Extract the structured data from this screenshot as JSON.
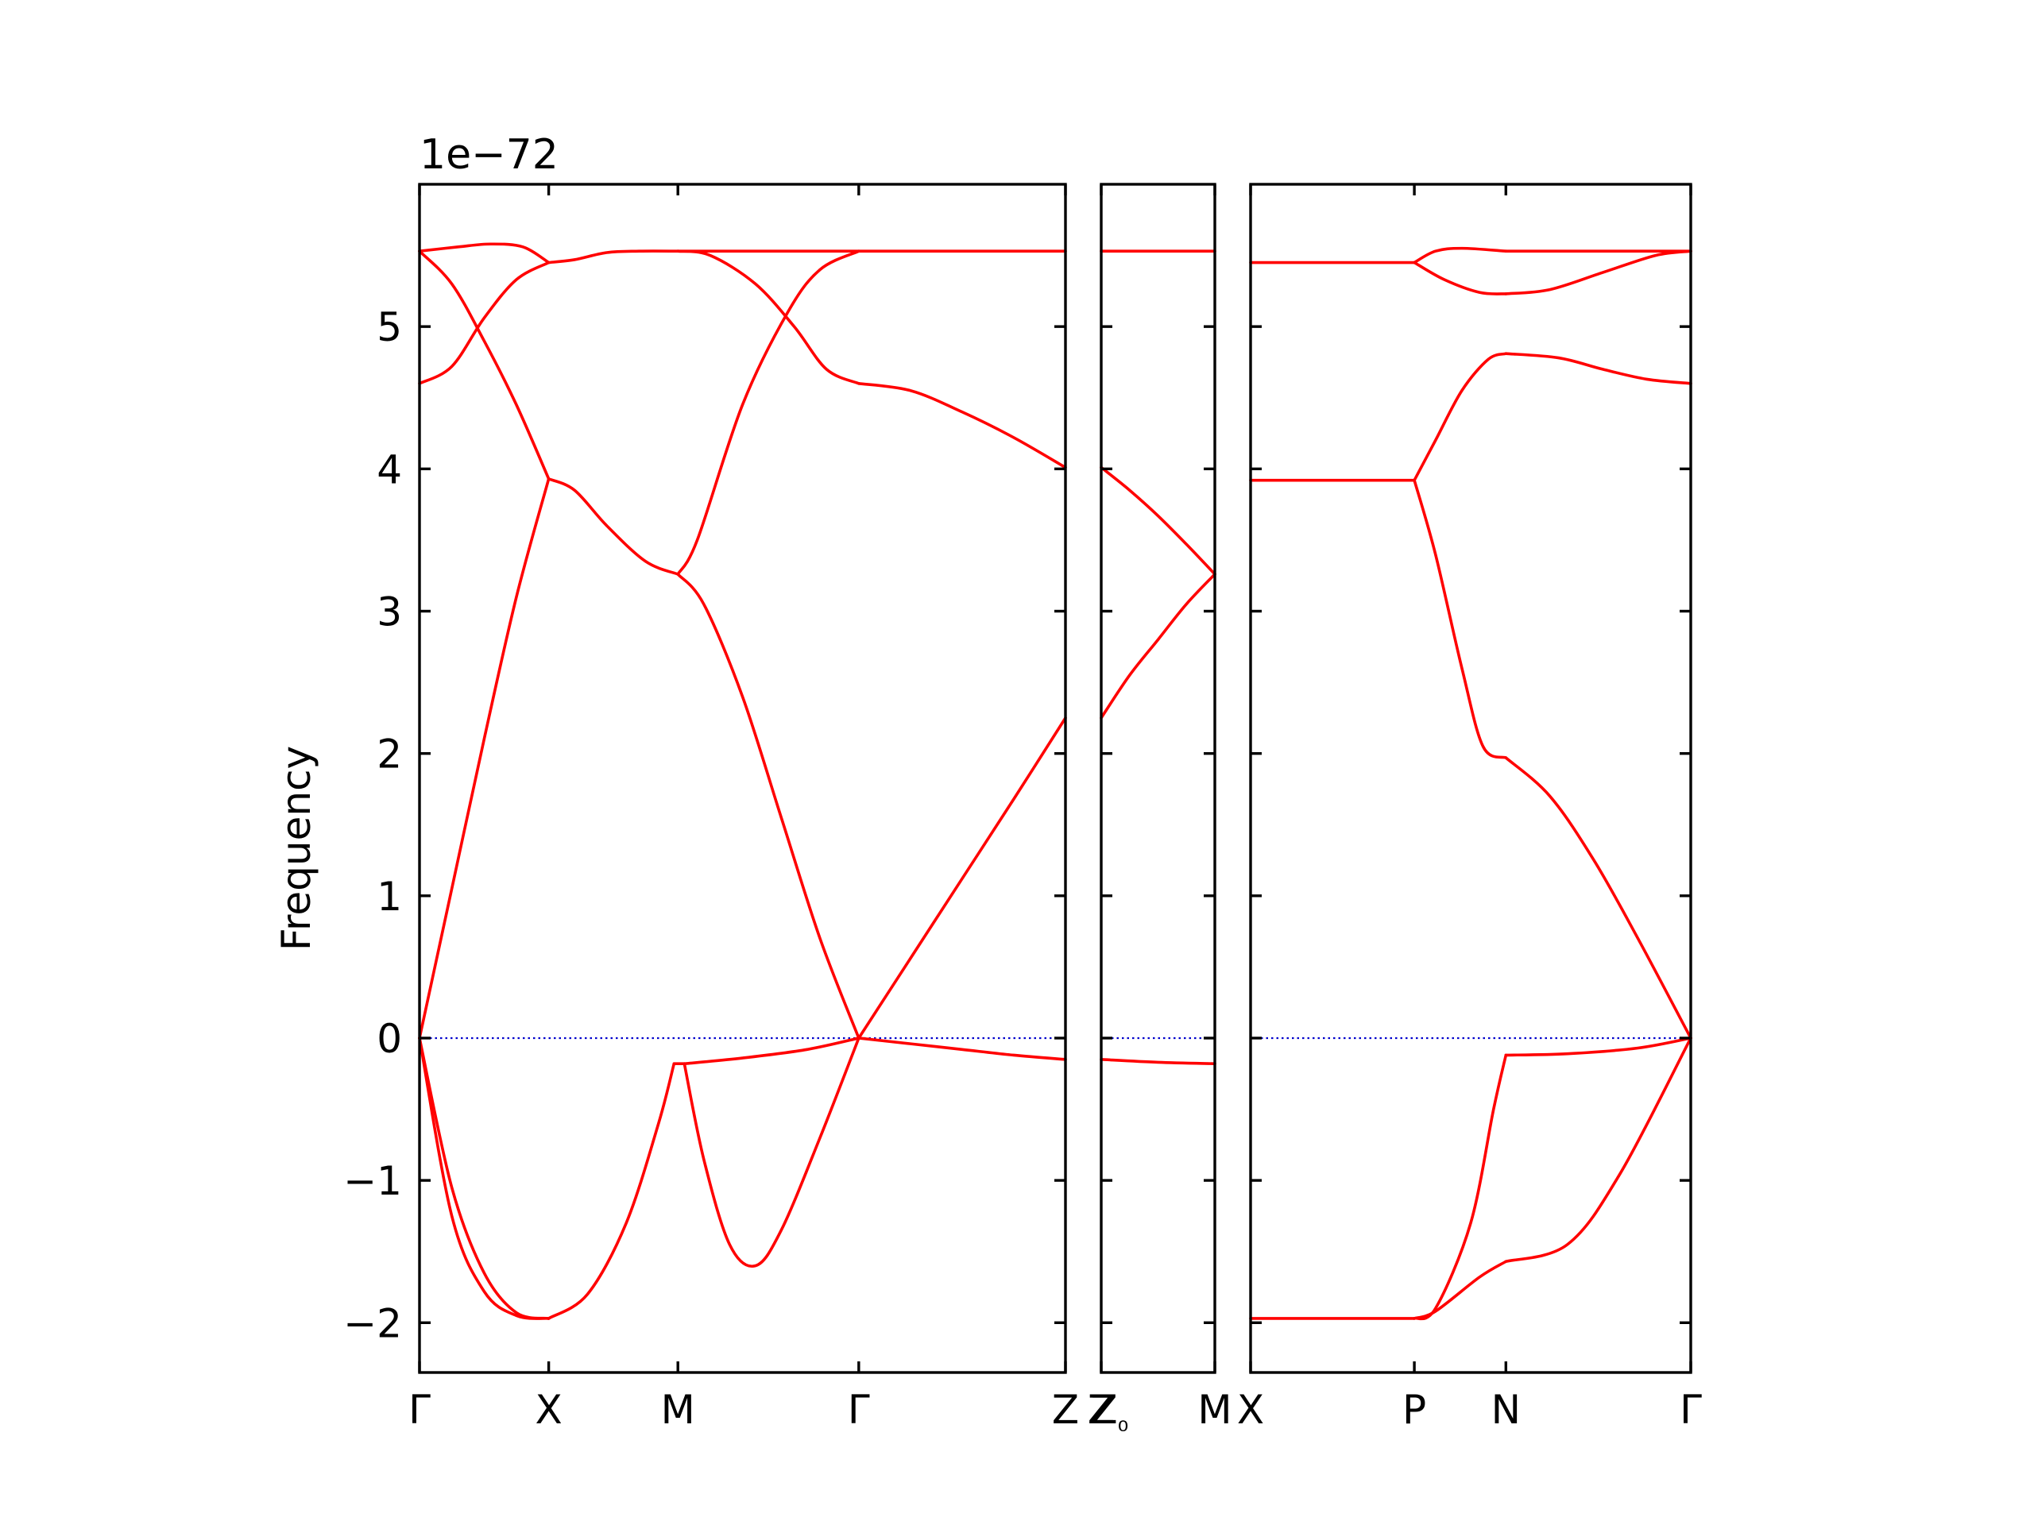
{
  "chart_data": {
    "type": "line",
    "title": "",
    "ylabel": "Frequency",
    "offset_label": "1e−72",
    "ylim": [
      -2.35,
      6.0
    ],
    "yticks": [
      -2,
      -1,
      0,
      1,
      2,
      3,
      4,
      5
    ],
    "ytick_labels": [
      "−2",
      "−1",
      "0",
      "1",
      "2",
      "3",
      "4",
      "5"
    ],
    "zero_line": {
      "value": 0,
      "style": "dotted",
      "color": "#0000cc"
    },
    "band_color": "#ff0000",
    "panels": [
      {
        "name": "panel-1",
        "xlim": [
          0,
          5
        ],
        "ticks": [
          {
            "x": 0,
            "label": "Γ"
          },
          {
            "x": 1,
            "label": "X"
          },
          {
            "x": 2,
            "label": "M"
          },
          {
            "x": 3.4,
            "label": "Γ"
          },
          {
            "x": 5,
            "label": "Z"
          }
        ],
        "series": [
          {
            "x": [
              0,
              0.25,
              0.5,
              0.75,
              1
            ],
            "y": [
              0,
              1.05,
              2.1,
              3.1,
              3.93
            ]
          },
          {
            "x": [
              0,
              0.25,
              0.5,
              0.75,
              1
            ],
            "y": [
              5.53,
              5.3,
              4.9,
              4.45,
              3.93
            ]
          },
          {
            "x": [
              0,
              0.25,
              0.5,
              0.75,
              1
            ],
            "y": [
              4.6,
              4.72,
              5.06,
              5.33,
              5.45
            ]
          },
          {
            "x": [
              0,
              0.3,
              0.55,
              0.8,
              1
            ],
            "y": [
              5.53,
              5.56,
              5.58,
              5.56,
              5.45
            ]
          },
          {
            "x": [
              1,
              1.2,
              1.45,
              1.7,
              2
            ],
            "y": [
              5.45,
              5.47,
              5.52,
              5.53,
              5.53
            ]
          },
          {
            "x": [
              1,
              1.2,
              1.45,
              1.75,
              2
            ],
            "y": [
              3.93,
              3.85,
              3.6,
              3.35,
              3.26
            ]
          },
          {
            "x": [
              2,
              2.2,
              2.5,
              2.8,
              3.1,
              3.4
            ],
            "y": [
              3.26,
              3.05,
              2.4,
              1.55,
              0.7,
              0
            ]
          },
          {
            "x": [
              2,
              2.15,
              2.5,
              2.85,
              3.1,
              3.4
            ],
            "y": [
              3.26,
              3.5,
              4.45,
              5.1,
              5.4,
              5.53
            ]
          },
          {
            "x": [
              2,
              2.25,
              2.6,
              2.9,
              3.15,
              3.4
            ],
            "y": [
              5.53,
              5.5,
              5.3,
              5.0,
              4.7,
              4.6
            ]
          },
          {
            "x": [
              2,
              2.5,
              3,
              3.4
            ],
            "y": [
              5.53,
              5.53,
              5.53,
              5.53
            ]
          },
          {
            "x": [
              3.4,
              3.8,
              4.2,
              4.6,
              5
            ],
            "y": [
              4.6,
              4.55,
              4.4,
              4.22,
              4.01
            ]
          },
          {
            "x": [
              3.4,
              3.8,
              4.2,
              4.6,
              5
            ],
            "y": [
              5.53,
              5.53,
              5.53,
              5.53,
              5.53
            ]
          },
          {
            "x": [
              3.4,
              3.8,
              4.2,
              4.6,
              5
            ],
            "y": [
              0,
              0.56,
              1.12,
              1.68,
              2.25
            ]
          },
          {
            "x": [
              3.4,
              3.8,
              4.2,
              4.6,
              5
            ],
            "y": [
              0,
              -0.04,
              -0.08,
              -0.12,
              -0.15
            ]
          },
          {
            "x": [
              0,
              0.25,
              0.5,
              0.75,
              1
            ],
            "y": [
              0,
              -1.05,
              -1.65,
              -1.93,
              -1.97
            ]
          },
          {
            "x": [
              0,
              0.25,
              0.5,
              0.75,
              1
            ],
            "y": [
              0,
              -1.25,
              -1.78,
              -1.95,
              -1.97
            ]
          },
          {
            "x": [
              1,
              1.3,
              1.6,
              1.85,
              1.97
            ],
            "y": [
              -1.97,
              -1.8,
              -1.3,
              -0.6,
              -0.18
            ]
          },
          {
            "x": [
              2.05,
              2.2,
              2.4,
              2.6,
              2.8,
              3.1,
              3.4
            ],
            "y": [
              -0.18,
              -0.85,
              -1.45,
              -1.6,
              -1.35,
              -0.7,
              0
            ]
          },
          {
            "x": [
              1.97,
              2.05
            ],
            "y": [
              -0.18,
              -0.18
            ]
          },
          {
            "x": [
              2.05,
              2.5,
              3,
              3.4
            ],
            "y": [
              -0.18,
              -0.14,
              -0.08,
              0
            ]
          }
        ]
      },
      {
        "name": "panel-2",
        "xlim": [
          0,
          1
        ],
        "ticks": [
          {
            "x": 0,
            "label": "Z"
          },
          {
            "x": 1,
            "label": "M"
          }
        ],
        "tick_label_override": [
          {
            "x": 0.1,
            "label": "Z₀"
          }
        ],
        "series": [
          {
            "x": [
              0,
              0.25,
              0.5,
              0.75,
              1
            ],
            "y": [
              4.01,
              3.85,
              3.67,
              3.47,
              3.26
            ]
          },
          {
            "x": [
              0,
              0.25,
              0.5,
              0.75,
              1
            ],
            "y": [
              2.25,
              2.55,
              2.8,
              3.05,
              3.26
            ]
          },
          {
            "x": [
              0,
              1
            ],
            "y": [
              5.53,
              5.53
            ]
          },
          {
            "x": [
              0,
              0.5,
              1
            ],
            "y": [
              -0.15,
              -0.17,
              -0.18
            ]
          }
        ]
      },
      {
        "name": "panel-3",
        "xlim": [
          0,
          2.5
        ],
        "ticks": [
          {
            "x": 0,
            "label": "X"
          },
          {
            "x": 0.93,
            "label": "P"
          },
          {
            "x": 1.45,
            "label": "N"
          },
          {
            "x": 2.5,
            "label": "Γ"
          }
        ],
        "series": [
          {
            "x": [
              0,
              0.93
            ],
            "y": [
              5.45,
              5.45
            ]
          },
          {
            "x": [
              0.93,
              1.05,
              1.2,
              1.45
            ],
            "y": [
              5.45,
              5.53,
              5.55,
              5.53
            ]
          },
          {
            "x": [
              0.93,
              1.1,
              1.3,
              1.45
            ],
            "y": [
              5.45,
              5.33,
              5.24,
              5.23
            ]
          },
          {
            "x": [
              1.45,
              1.8,
              2.1,
              2.5
            ],
            "y": [
              5.53,
              5.53,
              5.53,
              5.53
            ]
          },
          {
            "x": [
              1.45,
              1.7,
              2.0,
              2.3,
              2.5
            ],
            "y": [
              5.23,
              5.26,
              5.38,
              5.5,
              5.53
            ]
          },
          {
            "x": [
              0,
              0.93
            ],
            "y": [
              3.92,
              3.92
            ]
          },
          {
            "x": [
              0.93,
              1.05,
              1.2,
              1.35,
              1.45
            ],
            "y": [
              3.92,
              4.2,
              4.55,
              4.77,
              4.81
            ]
          },
          {
            "x": [
              1.45,
              1.75,
              2.0,
              2.25,
              2.5
            ],
            "y": [
              4.81,
              4.78,
              4.7,
              4.63,
              4.6
            ]
          },
          {
            "x": [
              0.93,
              1.05,
              1.2,
              1.32,
              1.45
            ],
            "y": [
              3.92,
              3.4,
              2.6,
              2.05,
              1.97
            ]
          },
          {
            "x": [
              1.45,
              1.7,
              1.95,
              2.2,
              2.5
            ],
            "y": [
              1.97,
              1.7,
              1.25,
              0.7,
              0
            ]
          },
          {
            "x": [
              0,
              0.93
            ],
            "y": [
              -1.97,
              -1.97
            ]
          },
          {
            "x": [
              0.93,
              1.05,
              1.25,
              1.38,
              1.45
            ],
            "y": [
              -1.97,
              -1.9,
              -1.3,
              -0.5,
              -0.12
            ]
          },
          {
            "x": [
              0.93,
              1.05,
              1.3,
              1.45
            ],
            "y": [
              -1.97,
              -1.92,
              -1.68,
              -1.57
            ]
          },
          {
            "x": [
              1.45,
              1.8,
              2.1,
              2.5
            ],
            "y": [
              -1.57,
              -1.45,
              -0.95,
              0
            ]
          },
          {
            "x": [
              1.45,
              1.8,
              2.2,
              2.5
            ],
            "y": [
              -0.12,
              -0.11,
              -0.07,
              0
            ]
          }
        ]
      }
    ]
  }
}
